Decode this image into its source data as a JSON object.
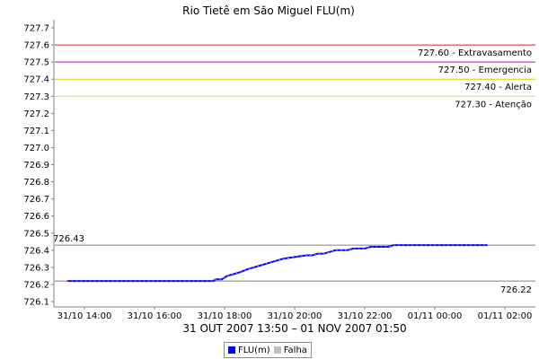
{
  "chart_data": {
    "type": "line",
    "title": "Rio Tietê em São Miguel FLU(m)",
    "xlabel": "31 OUT 2007 13:50 – 01 NOV 2007 01:50",
    "ylabel": "",
    "ylim": [
      726.1,
      727.7
    ],
    "y_ticks": [
      "726.1",
      "726.2",
      "726.3",
      "726.4",
      "726.5",
      "726.6",
      "726.7",
      "726.8",
      "726.9",
      "727.0",
      "727.1",
      "727.2",
      "727.3",
      "727.4",
      "727.5",
      "727.6",
      "727.7"
    ],
    "x_ticks": [
      {
        "t": 0.5,
        "label": "31/10 14:00"
      },
      {
        "t": 2.5,
        "label": "31/10 16:00"
      },
      {
        "t": 4.5,
        "label": "31/10 18:00"
      },
      {
        "t": 6.5,
        "label": "31/10 20:00"
      },
      {
        "t": 8.5,
        "label": "31/10 22:00"
      },
      {
        "t": 10.5,
        "label": "01/11 00:00"
      },
      {
        "t": 12.5,
        "label": "01/11 02:00"
      }
    ],
    "series": [
      {
        "name": "FLU(m)",
        "color": "#0000ff",
        "points": [
          [
            0.0,
            726.22
          ],
          [
            4.17,
            726.22
          ],
          [
            4.25,
            726.23
          ],
          [
            4.42,
            726.23
          ],
          [
            4.58,
            726.25
          ],
          [
            4.75,
            726.26
          ],
          [
            4.92,
            726.27
          ],
          [
            5.17,
            726.29
          ],
          [
            5.5,
            726.31
          ],
          [
            5.83,
            726.33
          ],
          [
            6.17,
            726.35
          ],
          [
            6.5,
            726.36
          ],
          [
            6.83,
            726.37
          ],
          [
            7.0,
            726.37
          ],
          [
            7.17,
            726.38
          ],
          [
            7.33,
            726.38
          ],
          [
            7.5,
            726.39
          ],
          [
            7.67,
            726.4
          ],
          [
            8.0,
            726.4
          ],
          [
            8.17,
            726.41
          ],
          [
            8.5,
            726.41
          ],
          [
            8.67,
            726.42
          ],
          [
            9.17,
            726.42
          ],
          [
            9.33,
            726.43
          ],
          [
            12.0,
            726.43
          ]
        ]
      }
    ],
    "reference_lines": [
      {
        "value": 727.6,
        "label": "727.60 - Extravasamento",
        "color": "#e02020"
      },
      {
        "value": 727.5,
        "label": "727.50 - Emergencia",
        "color": "#cc00cc"
      },
      {
        "value": 727.4,
        "label": "727.40 - Alerta",
        "color": "#e8c000"
      },
      {
        "value": 727.3,
        "label": "727.30 - Atenção",
        "color": "#e8d848"
      },
      {
        "value": 726.43,
        "label": "726.43",
        "color": "#808080",
        "label_side": "left"
      },
      {
        "value": 726.22,
        "label": "726.22",
        "color": "#808080",
        "label_side": "right"
      }
    ],
    "legend": {
      "position": "bottom-center",
      "entries": [
        {
          "name": "FLU(m)",
          "color": "#0000ff"
        },
        {
          "name": "Falha",
          "color": "#c0c0c0"
        }
      ]
    },
    "grid": false
  }
}
